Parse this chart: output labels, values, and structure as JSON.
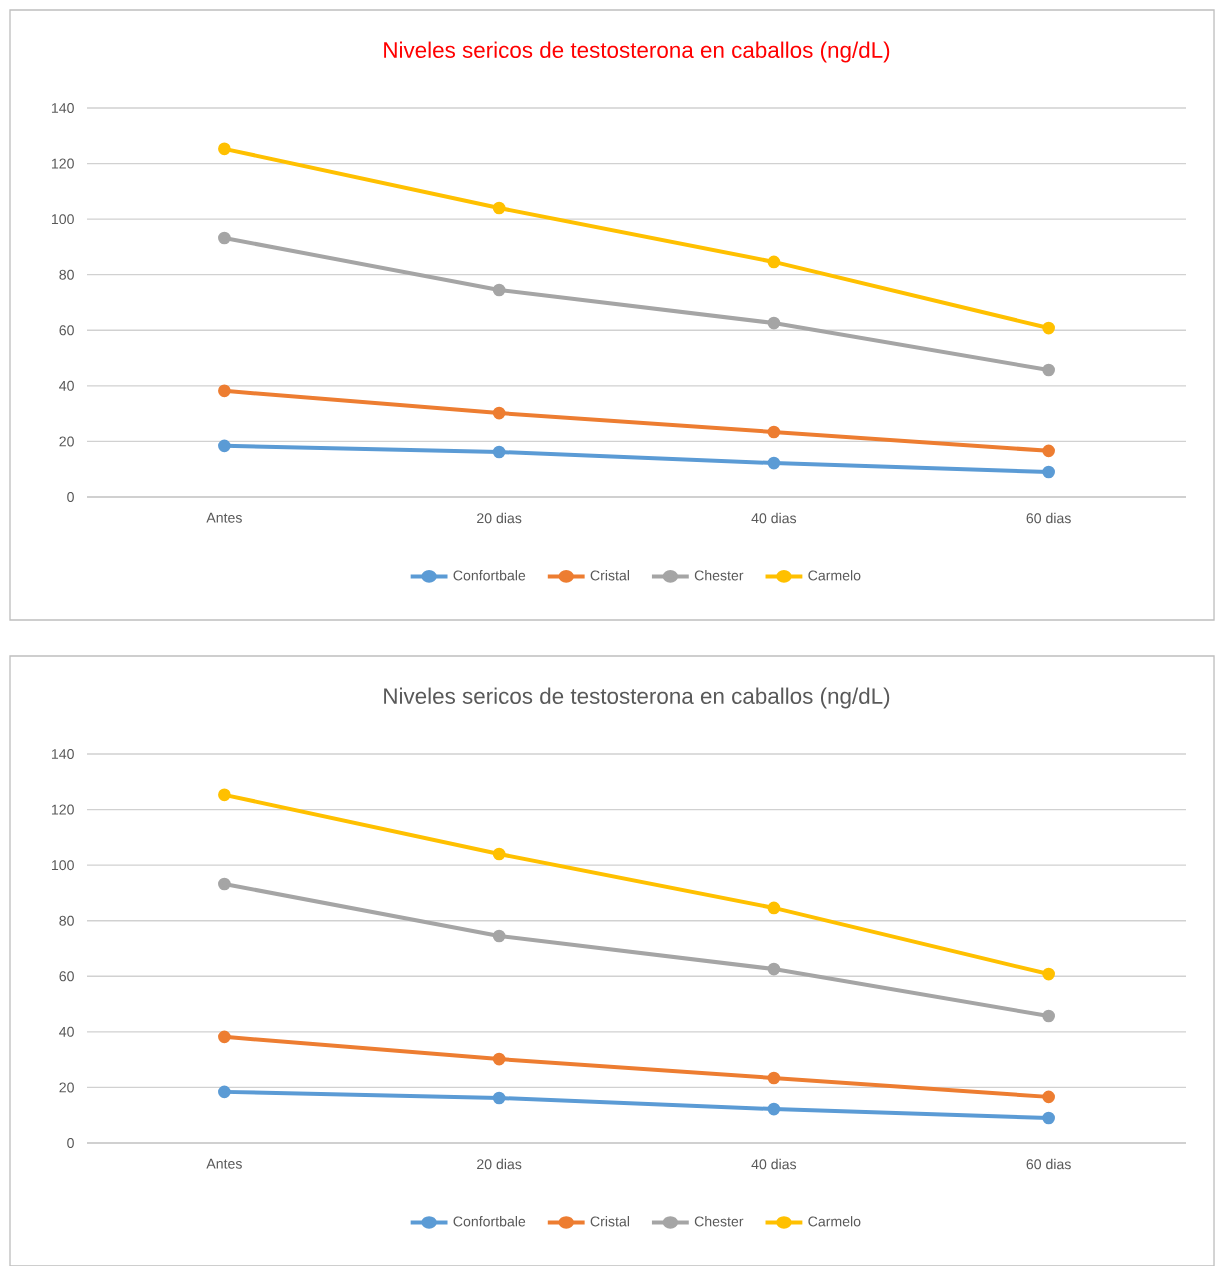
{
  "chart_data": [
    {
      "type": "line",
      "title": "Niveles sericos de testosterona en caballos (ng/dL)",
      "categories": [
        "Antes",
        "20 dias",
        "40 dias",
        "60 dias"
      ],
      "ylim": [
        0,
        140
      ],
      "yticks": [
        0,
        20,
        40,
        60,
        80,
        100,
        120,
        140
      ],
      "grid": "y",
      "legend": "bottom",
      "marker": "circle",
      "series": [
        {
          "name": "Confortbale",
          "color": "#5b9bd5",
          "values": [
            18.4,
            16.2,
            12.2,
            9
          ]
        },
        {
          "name": "Cristal",
          "color": "#ed7d31",
          "values": [
            38.2,
            30.2,
            23.4,
            16.6
          ]
        },
        {
          "name": "Chester",
          "color": "#a5a5a5",
          "values": [
            93.2,
            74.5,
            62.6,
            45.7
          ]
        },
        {
          "name": "Carmelo",
          "color": "#ffc000",
          "values": [
            125.3,
            104,
            84.6,
            60.8
          ]
        }
      ]
    },
    {
      "type": "line",
      "title": "Niveles sericos de testosterona en caballos (ng/dL)",
      "categories": [
        "Antes",
        "20 dias",
        "40 dias",
        "60 dias"
      ],
      "ylim": [
        0,
        140
      ],
      "yticks": [
        0,
        20,
        40,
        60,
        80,
        100,
        120,
        140
      ],
      "grid": "y",
      "legend": "bottom",
      "marker": "circle",
      "series": [
        {
          "name": "Confortbale",
          "color": "#5b9bd5",
          "values": [
            18.4,
            16.2,
            12.2,
            9
          ]
        },
        {
          "name": "Cristal",
          "color": "#ed7d31",
          "values": [
            38.2,
            30.2,
            23.4,
            16.6
          ]
        },
        {
          "name": "Chester",
          "color": "#a5a5a5",
          "values": [
            93.2,
            74.5,
            62.6,
            45.7
          ]
        },
        {
          "name": "Carmelo",
          "color": "#ffc000",
          "values": [
            125.3,
            104,
            84.6,
            60.8
          ]
        }
      ]
    }
  ]
}
